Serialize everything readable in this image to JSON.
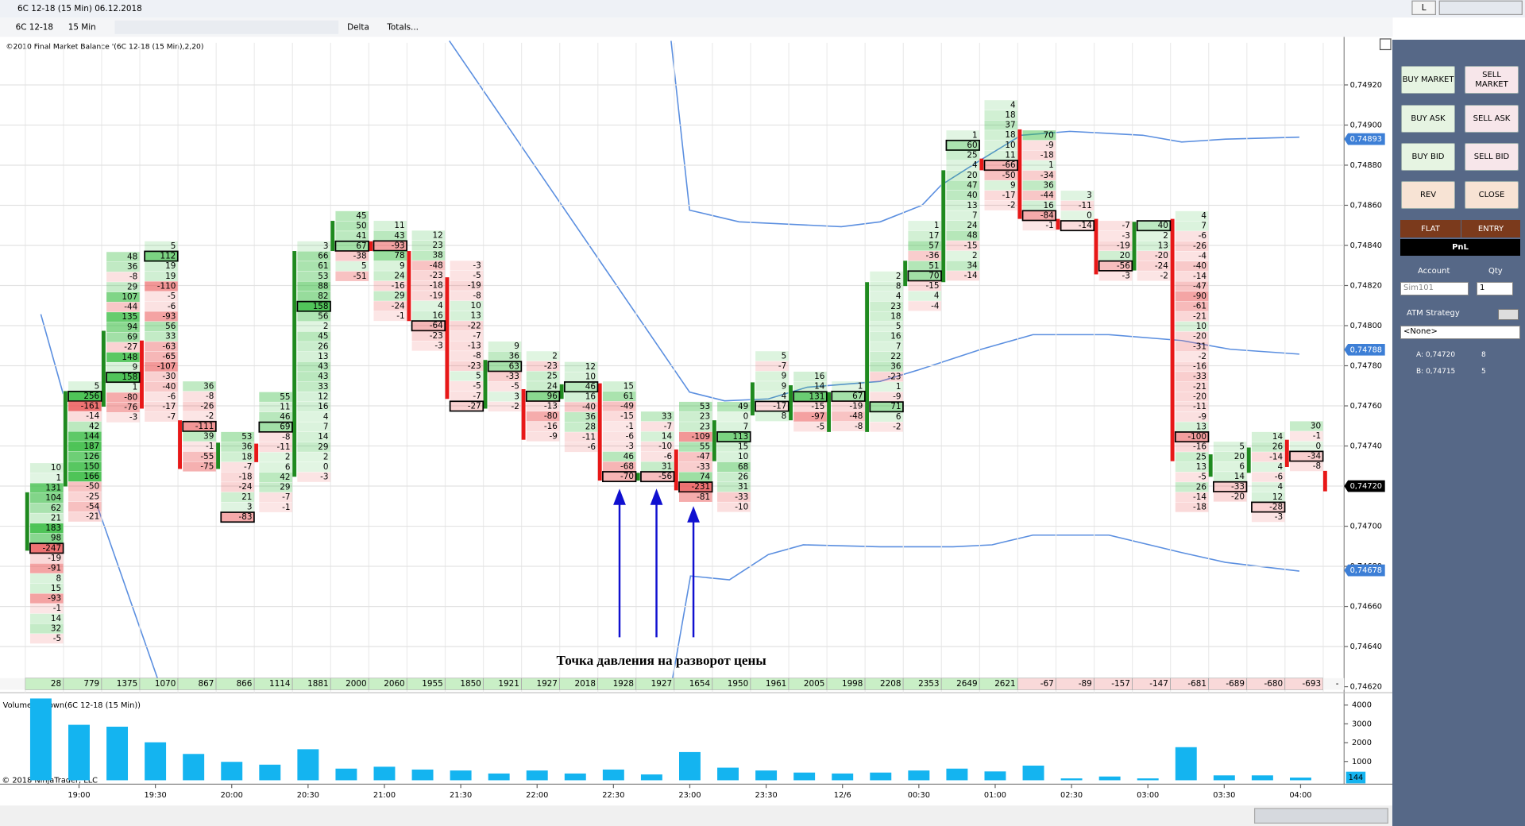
{
  "window": {
    "title": "6C 12-18 (15 Min)  06.12.2018",
    "button": "L"
  },
  "toolbar": {
    "instrument": "6C 12-18",
    "interval": "15 Min",
    "style": "Delta",
    "totals": "Totals..."
  },
  "chart_data": [
    {
      "type": "footprint",
      "title": "©2010 Final Market Balance  '(6C 12-18 (15 Min),2,20)",
      "ylim": [
        0.74617,
        0.74941
      ],
      "yticks": [
        {
          "value": 0.7492,
          "label": "0,74920"
        },
        {
          "value": 0.749,
          "label": "0,74900"
        },
        {
          "value": 0.7488,
          "label": "0,74880"
        },
        {
          "value": 0.7486,
          "label": "0,74860"
        },
        {
          "value": 0.7484,
          "label": "0,74840"
        },
        {
          "value": 0.7482,
          "label": "0,74820"
        },
        {
          "value": 0.748,
          "label": "0,74800"
        },
        {
          "value": 0.7478,
          "label": "0,74780"
        },
        {
          "value": 0.7476,
          "label": "0,74760"
        },
        {
          "value": 0.7474,
          "label": "0,74740"
        },
        {
          "value": 0.7472,
          "label": "0,74720"
        },
        {
          "value": 0.747,
          "label": "0,74700"
        },
        {
          "value": 0.7468,
          "label": "0,74680"
        },
        {
          "value": 0.7466,
          "label": "0,74660"
        },
        {
          "value": 0.7464,
          "label": "0,74640"
        },
        {
          "value": 0.7462,
          "label": "0,74620"
        }
      ],
      "grid": true,
      "price_markers": [
        {
          "value": 0.74893,
          "label": "0,74893",
          "color": "#3d7fd6"
        },
        {
          "value": 0.74788,
          "label": "0,74788",
          "color": "#3d7fd6"
        },
        {
          "value": 0.7472,
          "label": "0,74720",
          "color": "#000000"
        },
        {
          "value": 0.74678,
          "label": "0,74678",
          "color": "#3d7fd6"
        }
      ],
      "columns": [
        [
          10,
          1,
          131,
          104,
          62,
          21,
          183,
          98,
          -247,
          -19,
          -91,
          8,
          15,
          -93,
          -1,
          14,
          32,
          -5
        ],
        [
          5,
          256,
          -161,
          -14,
          42,
          144,
          187,
          126,
          150,
          166,
          -50,
          -25,
          -54,
          -21
        ],
        [
          48,
          36,
          -8,
          29,
          107,
          -44,
          135,
          94,
          69,
          -27,
          148,
          9,
          158,
          1,
          -80,
          -76,
          -3
        ],
        [
          5,
          112,
          19,
          19,
          -110,
          -5,
          -6,
          -93,
          56,
          33,
          -63,
          -65,
          -107,
          -30,
          -40,
          -6,
          -17,
          -7
        ],
        [
          36,
          -8,
          -26,
          -2,
          -111,
          39,
          -1,
          -55,
          -75
        ],
        [
          53,
          36,
          18,
          -7,
          -18,
          -24,
          21,
          3,
          -83
        ],
        [
          55,
          11,
          46,
          69,
          -8,
          -11,
          2,
          6,
          42,
          29,
          -7,
          -1
        ],
        [
          3,
          66,
          61,
          53,
          88,
          82,
          158,
          56,
          2,
          45,
          26,
          13,
          43,
          43,
          33,
          12,
          16,
          4,
          7,
          14,
          29,
          2,
          0,
          -3
        ],
        [
          45,
          50,
          41,
          67,
          -38,
          5,
          -51
        ],
        [
          11,
          43,
          -93,
          78,
          9,
          24,
          -16,
          29,
          -24,
          -1
        ],
        [
          12,
          23,
          38,
          -48,
          -23,
          -18,
          -19,
          4,
          16,
          -64,
          -23,
          -3
        ],
        [
          -3,
          -5,
          -19,
          -8,
          10,
          13,
          -22,
          -7,
          -13,
          -8,
          -23,
          5,
          -5,
          -7,
          -27
        ],
        [
          9,
          36,
          63,
          -33,
          -5,
          3,
          -2
        ],
        [
          2,
          -23,
          25,
          24,
          96,
          -13,
          -80,
          -16,
          -9
        ],
        [
          12,
          10,
          46,
          16,
          -40,
          36,
          28,
          -11,
          -6
        ],
        [
          15,
          61,
          -49,
          -15,
          -1,
          -6,
          -3,
          46,
          -68,
          -70
        ],
        [
          33,
          -7,
          14,
          -10,
          -6,
          31,
          -56
        ],
        [
          53,
          23,
          23,
          -109,
          55,
          -47,
          -33,
          74,
          -231,
          -81
        ],
        [
          49,
          0,
          7,
          113,
          15,
          10,
          68,
          26,
          31,
          -33,
          -10
        ],
        [
          5,
          -7,
          9,
          9,
          4,
          -17,
          8
        ],
        [
          16,
          14,
          131,
          -15,
          -97,
          -5
        ],
        [
          1,
          67,
          -19,
          -48,
          -8
        ],
        [
          2,
          8,
          4,
          23,
          18,
          5,
          16,
          7,
          22,
          36,
          -23,
          1,
          -9,
          71,
          6,
          -2
        ],
        [
          1,
          17,
          57,
          -36,
          51,
          70,
          -15,
          4,
          -4
        ],
        [
          1,
          60,
          25,
          4,
          20,
          47,
          40,
          13,
          7,
          24,
          48,
          -15,
          2,
          34,
          -14
        ],
        [
          4,
          18,
          37,
          18,
          10,
          11,
          -66,
          -50,
          9,
          -17,
          -2
        ],
        [
          70,
          -9,
          -18,
          1,
          -34,
          36,
          -44,
          16,
          -84,
          -1
        ],
        [
          3,
          -11,
          0,
          -14
        ],
        [
          -7,
          -3,
          -19,
          20,
          -56,
          -3
        ],
        [
          40,
          2,
          13,
          -20,
          -24,
          -2
        ],
        [
          4,
          7,
          -6,
          -26,
          -4,
          -40,
          -14,
          -47,
          -90,
          -61,
          -21,
          10,
          -20,
          -31,
          -2,
          -16,
          -33,
          -21,
          -20,
          -11,
          -9,
          13,
          -100,
          -16,
          25,
          13,
          -5,
          26,
          -14,
          -18
        ],
        [
          5,
          20,
          6,
          14,
          -33,
          -20
        ],
        [
          14,
          26,
          -14,
          4,
          -6,
          4,
          12,
          -28,
          -3
        ],
        [
          30,
          -1,
          0,
          -34,
          -8
        ]
      ],
      "cumulative_delta": [
        28,
        779,
        1375,
        1070,
        867,
        866,
        1114,
        1881,
        2000,
        2060,
        1955,
        1850,
        1921,
        1927,
        2018,
        1928,
        1927,
        1654,
        1950,
        1961,
        2005,
        1998,
        2208,
        2353,
        2649,
        2621,
        -67,
        -89,
        -157,
        -147,
        -681,
        -689,
        -680,
        -693
      ],
      "cumulative_delta_overflow": "-",
      "annotation": "Точка давления на разворот цены"
    },
    {
      "type": "bar",
      "title": "VolumeUpDown(6C 12-18 (15 Min))",
      "color": "#14b4f0",
      "categories": [
        null,
        "19:00",
        null,
        "19:30",
        null,
        "20:00",
        null,
        "20:30",
        null,
        "21:00",
        null,
        "21:30",
        null,
        "22:00",
        null,
        "22:30",
        null,
        "23:00",
        null,
        "23:30",
        null,
        "12/6",
        null,
        "00:30",
        null,
        "01:00",
        null,
        "02:30",
        null,
        "03:00",
        null,
        "03:30",
        null,
        "04:00"
      ],
      "values": [
        4350,
        2950,
        2850,
        2020,
        1400,
        980,
        830,
        1650,
        620,
        720,
        570,
        520,
        360,
        520,
        360,
        570,
        310,
        1500,
        670,
        520,
        410,
        360,
        410,
        520,
        620,
        470,
        780,
        100,
        200,
        100,
        1760,
        260,
        260,
        144
      ],
      "ylim": [
        0,
        4450
      ],
      "yticks": [
        1000,
        2000,
        3000,
        4000
      ],
      "grid": false
    }
  ],
  "copyright": "© 2018 NinjaTrader, LLC",
  "order_panel": {
    "buy_market": "BUY MARKET",
    "sell_market": "SELL MARKET",
    "buy_ask": "BUY ASK",
    "sell_ask": "SELL ASK",
    "buy_bid": "BUY BID",
    "sell_bid": "SELL BID",
    "rev": "REV",
    "close": "CLOSE",
    "flat": "FLAT",
    "entry": "ENTRY",
    "pnl": "PnL",
    "account_label": "Account",
    "qty_label": "Qty",
    "account": "Sim101",
    "qty": 1,
    "atm_label": "ATM Strategy",
    "atm": "<None>",
    "ask": {
      "label": "A: 0,74720",
      "size": 8
    },
    "bid": {
      "label": "B: 0,74715",
      "size": 5
    }
  }
}
